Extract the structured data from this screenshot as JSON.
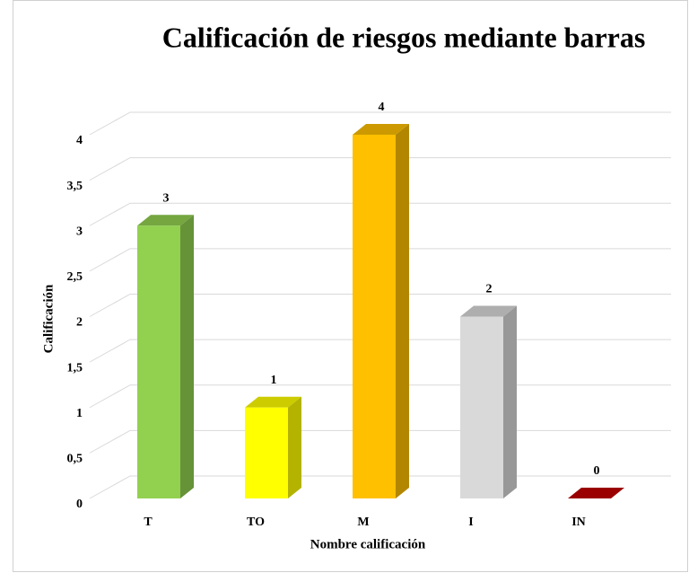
{
  "chart_data": {
    "type": "bar3d",
    "title": "Calificación de riesgos mediante barras",
    "x_label": "Nombre calificación",
    "y_label": "Calificación",
    "categories": [
      "T",
      "TO",
      "M",
      "I",
      "IN"
    ],
    "values": [
      3,
      1,
      4,
      2,
      0
    ],
    "colors": [
      "#92d050",
      "#ffff00",
      "#ffc000",
      "#d9d9d9",
      "#c00000"
    ],
    "ylim": [
      0,
      4
    ],
    "yticks": [
      0,
      {
        "value": 0.5,
        "label": "0,5"
      },
      1,
      {
        "value": 1.5,
        "label": "1,5"
      },
      2,
      {
        "value": 2.5,
        "label": "2,5"
      },
      3,
      {
        "value": 3.5,
        "label": "3,5"
      },
      4
    ],
    "grid": true
  }
}
